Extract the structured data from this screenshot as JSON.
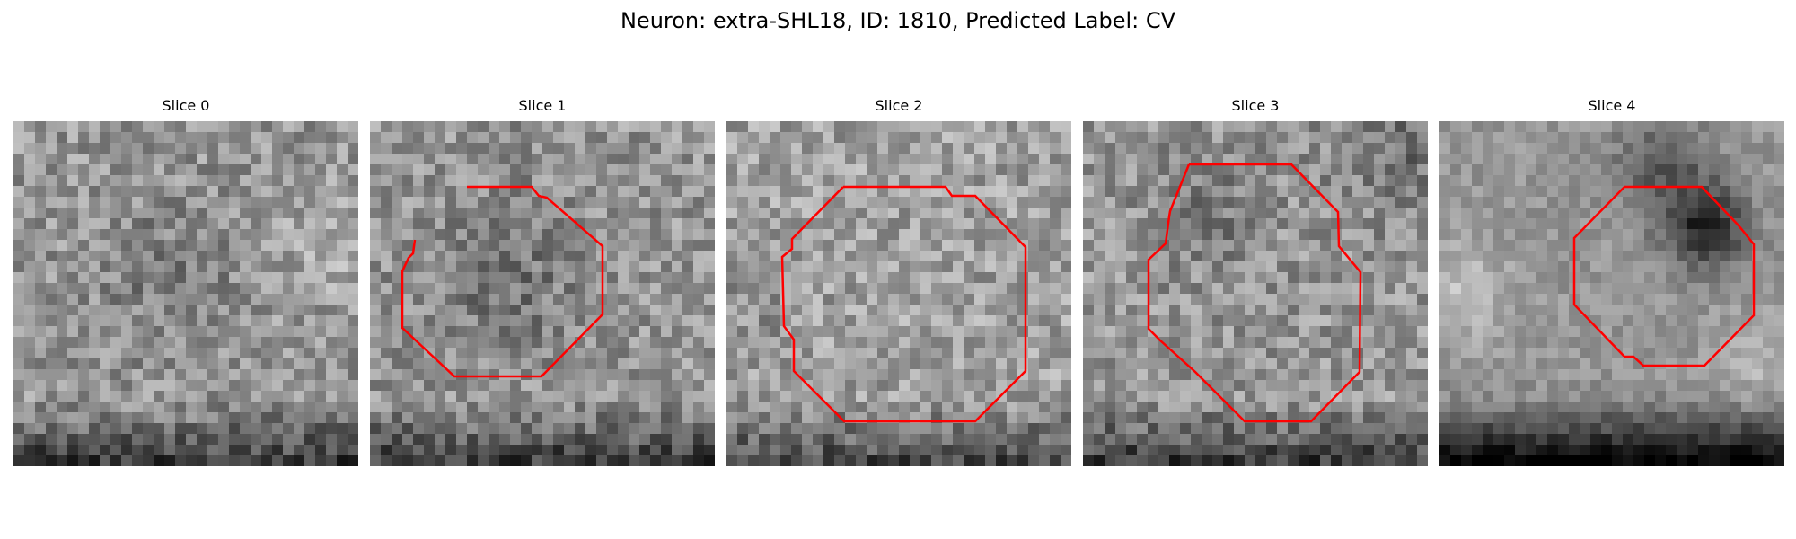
{
  "figure": {
    "title": "Neuron: extra-SHL18, ID: 1810, Predicted Label: CV",
    "outline_color": "#ff0000",
    "colormap": "gray",
    "grid_size": 32,
    "slices": [
      {
        "title": "Slice 0",
        "has_outline": false
      },
      {
        "title": "Slice 1",
        "has_outline": true
      },
      {
        "title": "Slice 2",
        "has_outline": true
      },
      {
        "title": "Slice 3",
        "has_outline": true
      },
      {
        "title": "Slice 4",
        "has_outline": true
      }
    ]
  }
}
